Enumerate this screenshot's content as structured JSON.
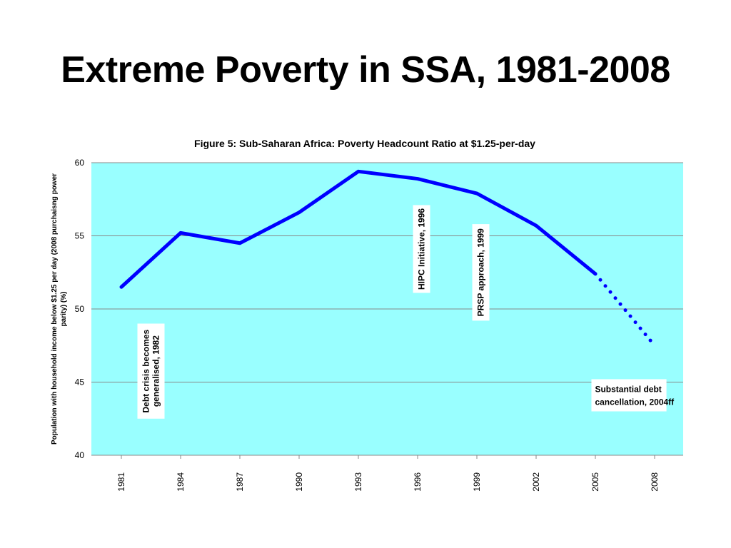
{
  "slide": {
    "title": "Extreme Poverty in SSA, 1981-2008"
  },
  "chart_data": {
    "type": "line",
    "title": "Figure 5: Sub-Saharan Africa: Poverty Headcount Ratio at $1.25-per-day",
    "xlabel": "",
    "ylabel_lines": [
      "Population with household income below $1.25 per day (2008 purchaisng power",
      "parity) (%)"
    ],
    "x": [
      1981,
      1984,
      1987,
      1990,
      1993,
      1996,
      1999,
      2002,
      2005,
      2008
    ],
    "x_tick_labels": [
      "1981",
      "1984",
      "1987",
      "1990",
      "1993",
      "1996",
      "1999",
      "2002",
      "2005",
      "2008"
    ],
    "ylim": [
      40,
      60
    ],
    "y_ticks": [
      40,
      45,
      50,
      55,
      60
    ],
    "grid": true,
    "plot_background": "#99ffff",
    "series": [
      {
        "values": [
          51.5,
          55.2,
          54.5,
          56.6,
          59.4,
          58.9,
          57.9,
          55.7,
          52.4
        ],
        "x": [
          1981,
          1984,
          1987,
          1990,
          1993,
          1996,
          1999,
          2002,
          2005
        ],
        "color": "#0000ff",
        "style": "solid"
      },
      {
        "values": [
          52.4,
          47.5
        ],
        "x": [
          2005,
          2008
        ],
        "color": "#0000ff",
        "style": "dotted"
      }
    ],
    "annotations": [
      {
        "id": "debt-crisis",
        "lines": [
          "Debt crisis becomes",
          "generalised, 1982"
        ],
        "orientation": "vertical",
        "x": 1982.5,
        "y_top": 49.0,
        "y_bottom": 42.5
      },
      {
        "id": "hipc",
        "lines": [
          "HIPC Initiative, 1996"
        ],
        "orientation": "vertical",
        "x": 1996.2,
        "y_top": 57.1,
        "y_bottom": 51.1
      },
      {
        "id": "prsp",
        "lines": [
          "PRSP approach, 1999"
        ],
        "orientation": "vertical",
        "x": 1999.2,
        "y_top": 55.8,
        "y_bottom": 49.2
      },
      {
        "id": "debt-cancellation",
        "lines": [
          "Substantial debt",
          "cancellation, 2004ff"
        ],
        "orientation": "horizontal",
        "x_left": 2004.8,
        "x_right": 2008.6,
        "y_top": 45.2,
        "y_bottom": 43.0
      }
    ]
  }
}
